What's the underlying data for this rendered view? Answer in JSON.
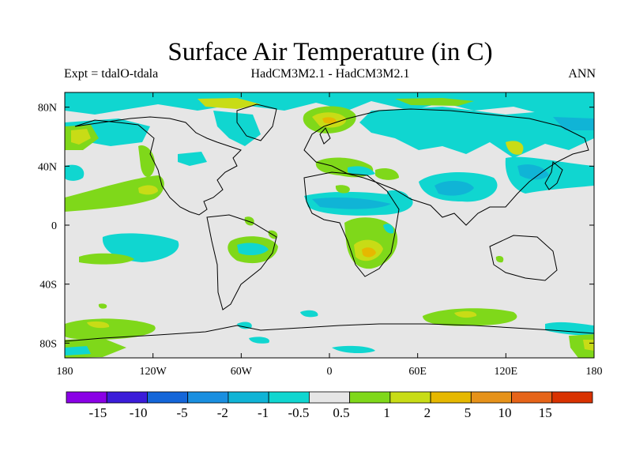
{
  "header": {
    "title": "Surface Air Temperature (in C)",
    "expt": "Expt = tdalO-tdala",
    "models": "HadCM3M2.1 - HadCM3M2.1",
    "period": "ANN"
  },
  "axes": {
    "x_ticks": [
      {
        "lon": -180,
        "label": "180"
      },
      {
        "lon": -120,
        "label": "120W"
      },
      {
        "lon": -60,
        "label": "60W"
      },
      {
        "lon": 0,
        "label": "0"
      },
      {
        "lon": 60,
        "label": "60E"
      },
      {
        "lon": 120,
        "label": "120E"
      },
      {
        "lon": 180,
        "label": "180"
      }
    ],
    "y_ticks": [
      {
        "lat": 80,
        "label": "80N"
      },
      {
        "lat": 40,
        "label": "40N"
      },
      {
        "lat": 0,
        "label": "0"
      },
      {
        "lat": -40,
        "label": "40S"
      },
      {
        "lat": -80,
        "label": "80S"
      }
    ],
    "lon_range": [
      -180,
      180
    ],
    "lat_range": [
      -90,
      90
    ]
  },
  "colorbar": {
    "colors": [
      "#8a00e6",
      "#3b1cd9",
      "#1466d9",
      "#1a8fe0",
      "#10b4d6",
      "#10d6d0",
      "#e6e6e6",
      "#7fd81a",
      "#c8dc16",
      "#e6b800",
      "#e6921a",
      "#e66419",
      "#d93200"
    ],
    "labels": [
      "-15",
      "-10",
      "-5",
      "-2",
      "-1",
      "-0.5",
      "0.5",
      "1",
      "2",
      "5",
      "10",
      "15"
    ]
  },
  "palette": {
    "background": "#e6e6e6",
    "cyan": "#10d6d0",
    "light_blue": "#10b4d6",
    "blue": "#1a8fe0",
    "green": "#7fd81a",
    "yellow": "#c8dc16",
    "orange": "#e6b800"
  }
}
